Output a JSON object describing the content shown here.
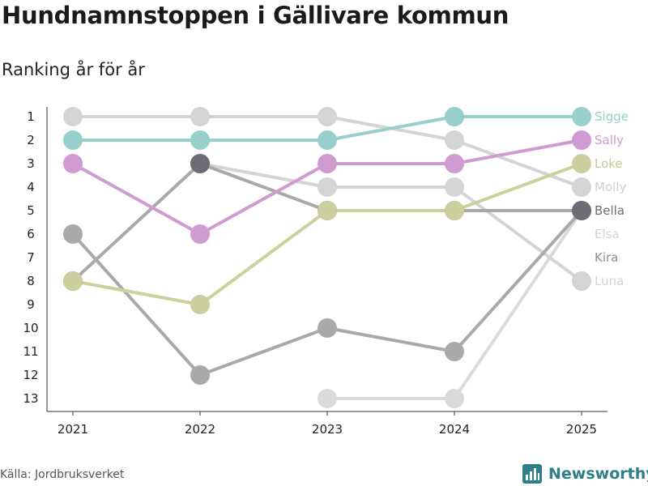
{
  "title": "Hundnamnstoppen i Gällivare kommun",
  "subtitle": "Ranking år för år",
  "source": "Källa: Jordbruksverket",
  "brand": {
    "name": "Newsworthy",
    "icon": "newsworthy-logo-icon",
    "color": "#2e7f86"
  },
  "chart_data": {
    "type": "line",
    "x": [
      "2021",
      "2022",
      "2023",
      "2024",
      "2025"
    ],
    "y_ticks": [
      1,
      2,
      3,
      4,
      5,
      6,
      7,
      8,
      9,
      10,
      11,
      12,
      13
    ],
    "ylim": [
      13,
      1
    ],
    "y_inverted": true,
    "grid": false,
    "legend": "end-labels-right",
    "series": [
      {
        "name": "Elsa",
        "color": "#dadada",
        "values": [
          null,
          null,
          13,
          13,
          5
        ]
      },
      {
        "name": "Luna",
        "color": "#d4d4d4",
        "values": [
          null,
          3,
          4,
          4,
          8
        ]
      },
      {
        "name": "Molly",
        "color": "#d4d4d4",
        "values": [
          1,
          1,
          1,
          2,
          4
        ]
      },
      {
        "name": "Kira",
        "color": "#a9a9a9",
        "values": [
          6,
          12,
          10,
          11,
          5
        ]
      },
      {
        "name": "Bella",
        "color": "#a9a9a9",
        "point_color": "#6c6c74",
        "values": [
          8,
          3,
          5,
          5,
          5
        ]
      },
      {
        "name": "Loke",
        "color": "#cdd09e",
        "values": [
          8,
          9,
          5,
          5,
          3
        ]
      },
      {
        "name": "Sally",
        "color": "#cf9bd0",
        "values": [
          3,
          6,
          3,
          3,
          2
        ]
      },
      {
        "name": "Sigge",
        "color": "#97cfcc",
        "values": [
          2,
          2,
          2,
          1,
          1
        ]
      }
    ],
    "end_labels": [
      {
        "name": "Sigge",
        "rank": 1,
        "color": "#97cfcc"
      },
      {
        "name": "Sally",
        "rank": 2,
        "color": "#cf9bd0"
      },
      {
        "name": "Loke",
        "rank": 3,
        "color": "#c6c98f"
      },
      {
        "name": "Molly",
        "rank": 4,
        "color": "#cfcfcf"
      },
      {
        "name": "Bella",
        "rank": 5,
        "color": "#6c6c74"
      },
      {
        "name": "Elsa",
        "rank": 6,
        "color": "#d4d4d4"
      },
      {
        "name": "Kira",
        "rank": 7,
        "color": "#8f8f8f"
      },
      {
        "name": "Luna",
        "rank": 8,
        "color": "#d4d4d4"
      }
    ]
  }
}
